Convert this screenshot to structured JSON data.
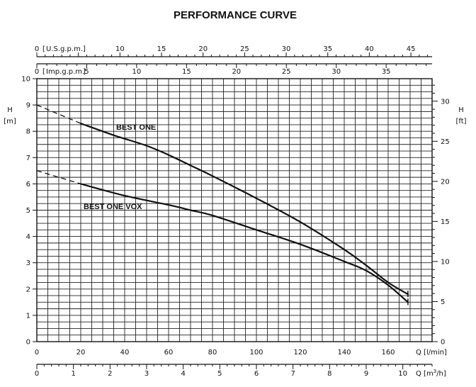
{
  "title": "PERFORMANCE CURVE",
  "chart_data": {
    "type": "line",
    "title": "PERFORMANCE CURVE",
    "x": {
      "label": "Q [l/min]",
      "range": [
        0,
        180
      ],
      "ticks": [
        0,
        20,
        40,
        60,
        80,
        100,
        120,
        140,
        160
      ]
    },
    "x_top_usgpm": {
      "label": "U.S.g.p.m.",
      "range": [
        0,
        47.55
      ],
      "ticks": [
        0,
        10,
        15,
        20,
        25,
        30,
        35,
        40,
        45
      ]
    },
    "x_top_impgpm": {
      "label": "Imp.g.p.m.",
      "range": [
        0,
        39.6
      ],
      "ticks": [
        0,
        5,
        10,
        15,
        20,
        25,
        30,
        35
      ]
    },
    "x_bottom_m3h": {
      "label": "Q [m3/h]",
      "range": [
        0,
        10.8
      ],
      "ticks": [
        0,
        1,
        2,
        3,
        4,
        5,
        6,
        7,
        8,
        9,
        10
      ]
    },
    "y": {
      "label_main": "H",
      "label_unit": "[m]",
      "range": [
        0,
        10
      ],
      "ticks": [
        0,
        1,
        2,
        3,
        4,
        5,
        6,
        7,
        8,
        9,
        10
      ]
    },
    "y_right_ft": {
      "label_main": "H",
      "label_unit": "[ft]",
      "range": [
        0,
        32.81
      ],
      "ticks": [
        0,
        5,
        10,
        15,
        20,
        25,
        30
      ]
    },
    "grid": true,
    "series": [
      {
        "name": "BEST ONE",
        "dashed_points": [
          [
            0,
            9.0
          ],
          [
            20,
            8.3
          ]
        ],
        "points": [
          [
            20,
            8.3
          ],
          [
            35,
            7.85
          ],
          [
            50,
            7.45
          ],
          [
            60,
            7.1
          ],
          [
            70,
            6.7
          ],
          [
            80,
            6.3
          ],
          [
            100,
            5.45
          ],
          [
            120,
            4.55
          ],
          [
            140,
            3.5
          ],
          [
            150,
            2.9
          ],
          [
            160,
            2.25
          ],
          [
            169,
            1.8
          ]
        ]
      },
      {
        "name": "BEST ONE VOX",
        "dashed_points": [
          [
            0,
            6.5
          ],
          [
            20,
            6.0
          ]
        ],
        "points": [
          [
            20,
            6.0
          ],
          [
            40,
            5.55
          ],
          [
            60,
            5.2
          ],
          [
            70,
            5.0
          ],
          [
            80,
            4.8
          ],
          [
            100,
            4.25
          ],
          [
            120,
            3.7
          ],
          [
            140,
            3.05
          ],
          [
            150,
            2.7
          ],
          [
            160,
            2.15
          ],
          [
            169,
            1.5
          ]
        ]
      }
    ]
  }
}
